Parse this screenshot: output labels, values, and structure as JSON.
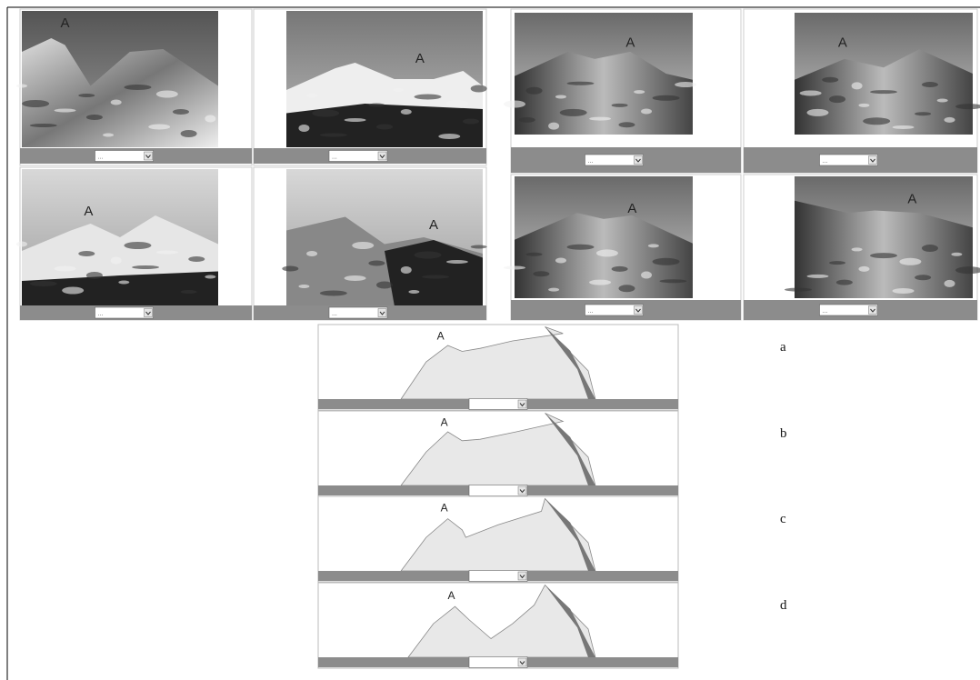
{
  "photos": [
    {
      "label": "A",
      "select": "..."
    },
    {
      "label": "A",
      "select": "..."
    },
    {
      "label": "A",
      "select": "..."
    },
    {
      "label": "A",
      "select": "..."
    },
    {
      "label": "A",
      "select": "..."
    },
    {
      "label": "A",
      "select": "..."
    },
    {
      "label": "A",
      "select": "..."
    },
    {
      "label": "A",
      "select": "..."
    }
  ],
  "silhouettes": [
    {
      "label": "A",
      "option": "a"
    },
    {
      "label": "A",
      "option": "b"
    },
    {
      "label": "A",
      "option": "c"
    },
    {
      "label": "A",
      "option": "d"
    }
  ]
}
